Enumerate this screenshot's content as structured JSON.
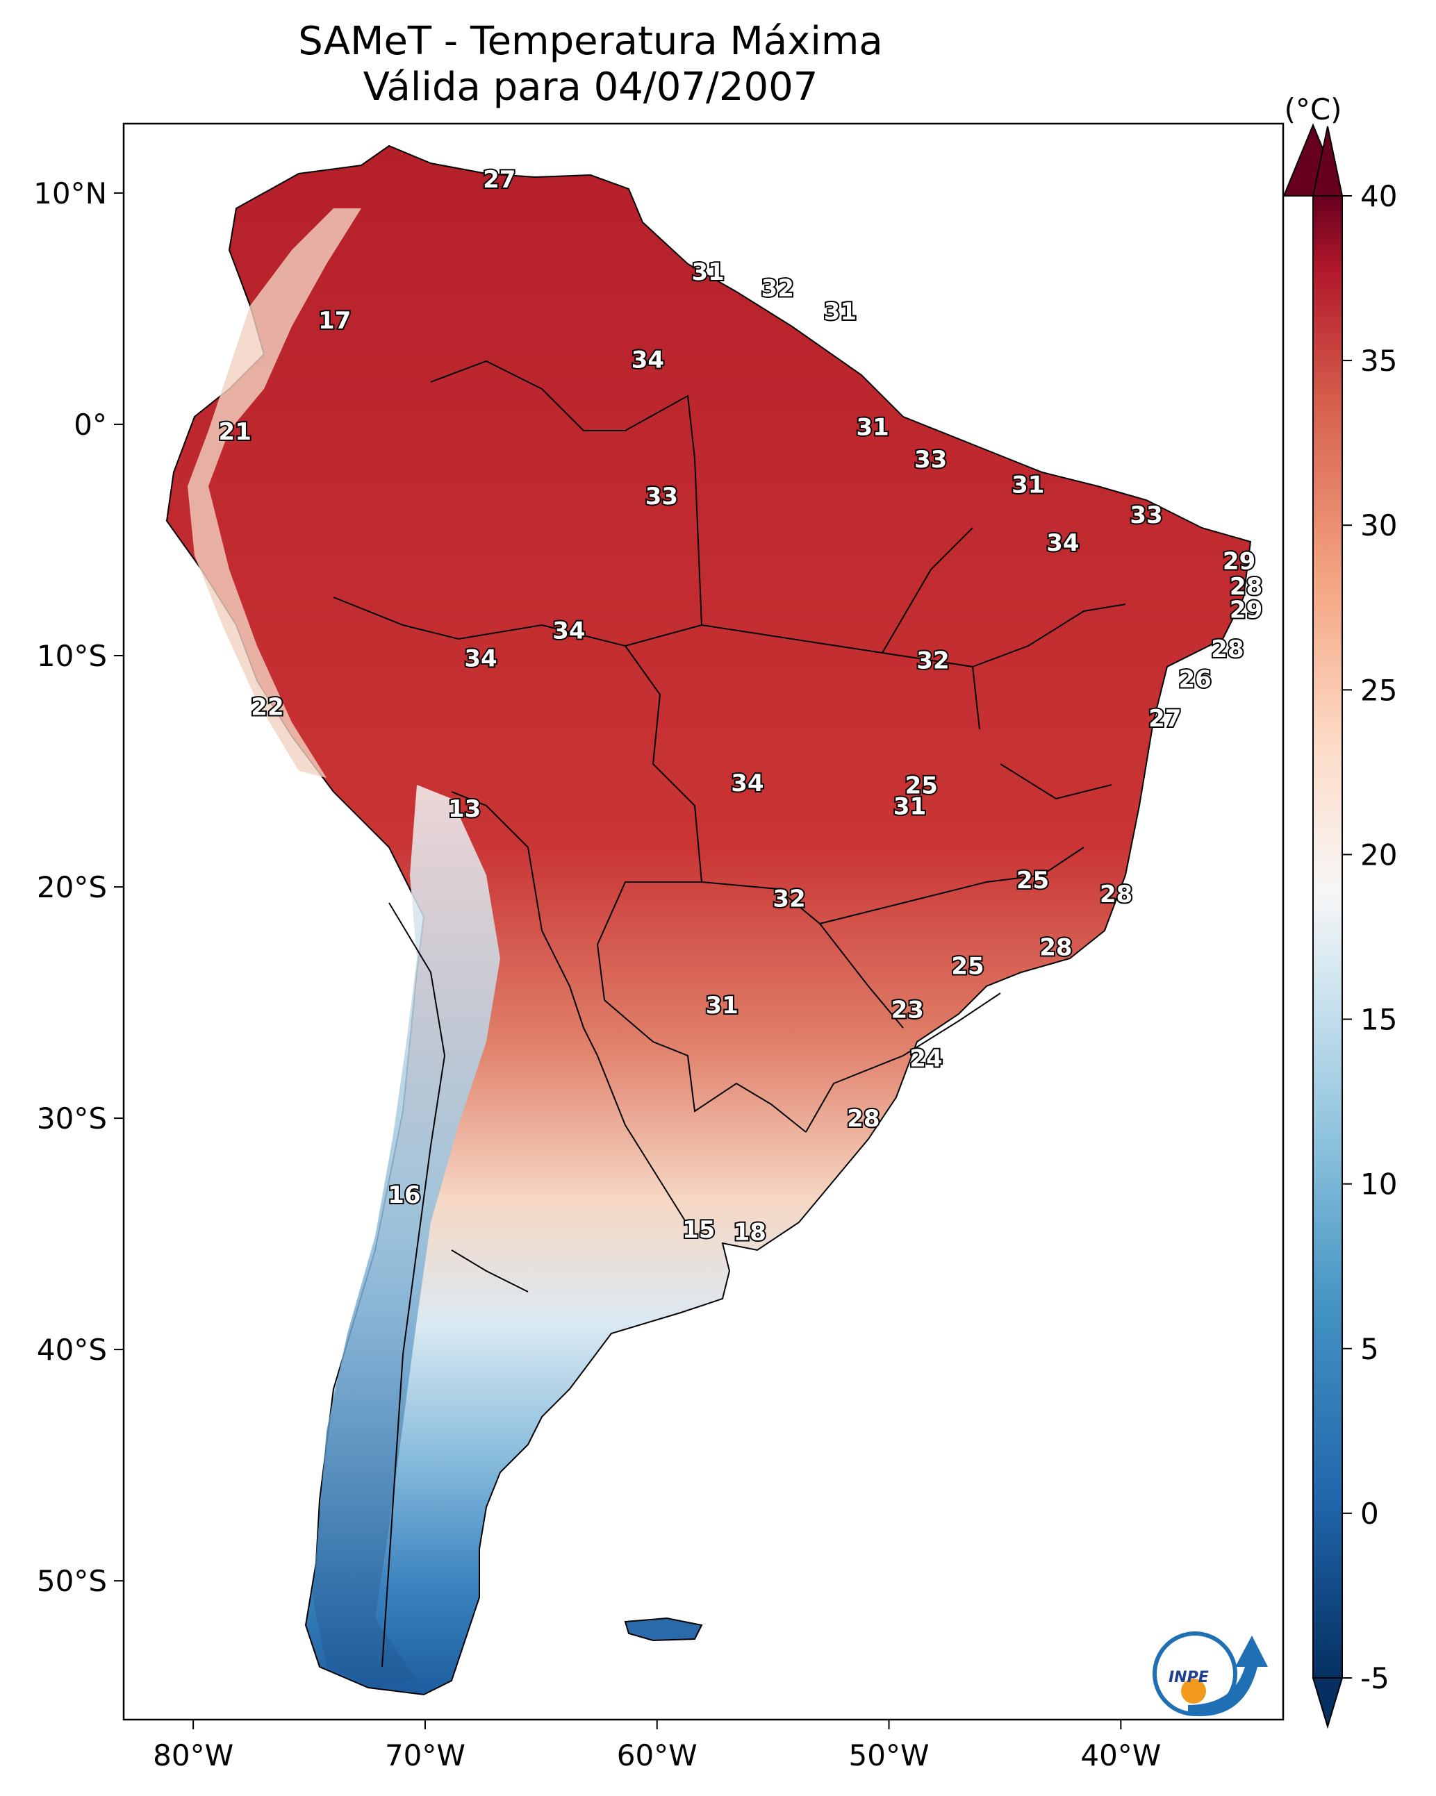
{
  "title": {
    "line1": "SAMeT - Temperatura Máxima",
    "line2": "Válida para 04/07/2007"
  },
  "map": {
    "lon_ticks": [
      {
        "lon": -80,
        "label": "80°W"
      },
      {
        "lon": -70,
        "label": "70°W"
      },
      {
        "lon": -60,
        "label": "60°W"
      },
      {
        "lon": -50,
        "label": "50°W"
      },
      {
        "lon": -40,
        "label": "40°W"
      }
    ],
    "lat_ticks": [
      {
        "lat": 10,
        "label": "10°N"
      },
      {
        "lat": 0,
        "label": "0°"
      },
      {
        "lat": -10,
        "label": "10°S"
      },
      {
        "lat": -20,
        "label": "20°S"
      },
      {
        "lat": -30,
        "label": "30°S"
      },
      {
        "lat": -40,
        "label": "40°S"
      },
      {
        "lat": -50,
        "label": "50°S"
      }
    ],
    "extent": {
      "lon_min": -83,
      "lon_max": -33,
      "lat_min": -56,
      "lat_max": 13
    },
    "labels": [
      {
        "text": "27",
        "lon": -66.8,
        "lat": 10.6
      },
      {
        "text": "31",
        "lon": -57.8,
        "lat": 6.6
      },
      {
        "text": "32",
        "lon": -54.8,
        "lat": 5.9
      },
      {
        "text": "31",
        "lon": -52.1,
        "lat": 4.9
      },
      {
        "text": "17",
        "lon": -73.9,
        "lat": 4.5
      },
      {
        "text": "34",
        "lon": -60.4,
        "lat": 2.8
      },
      {
        "text": "21",
        "lon": -78.2,
        "lat": -0.3
      },
      {
        "text": "31",
        "lon": -50.7,
        "lat": -0.1
      },
      {
        "text": "33",
        "lon": -48.2,
        "lat": -1.5
      },
      {
        "text": "31",
        "lon": -44.0,
        "lat": -2.6
      },
      {
        "text": "33",
        "lon": -59.8,
        "lat": -3.1
      },
      {
        "text": "33",
        "lon": -38.9,
        "lat": -3.9
      },
      {
        "text": "34",
        "lon": -42.5,
        "lat": -5.1
      },
      {
        "text": "29",
        "lon": -34.9,
        "lat": -5.9
      },
      {
        "text": "28",
        "lon": -34.6,
        "lat": -7.0
      },
      {
        "text": "29",
        "lon": -34.6,
        "lat": -8.0
      },
      {
        "text": "34",
        "lon": -63.8,
        "lat": -8.9
      },
      {
        "text": "28",
        "lon": -35.4,
        "lat": -9.7
      },
      {
        "text": "34",
        "lon": -67.6,
        "lat": -10.1
      },
      {
        "text": "32",
        "lon": -48.1,
        "lat": -10.2
      },
      {
        "text": "26",
        "lon": -36.8,
        "lat": -11.0
      },
      {
        "text": "22",
        "lon": -76.8,
        "lat": -12.2
      },
      {
        "text": "27",
        "lon": -38.1,
        "lat": -12.7
      },
      {
        "text": "34",
        "lon": -56.1,
        "lat": -15.5
      },
      {
        "text": "25",
        "lon": -48.6,
        "lat": -15.6
      },
      {
        "text": "13",
        "lon": -68.3,
        "lat": -16.6
      },
      {
        "text": "31",
        "lon": -49.1,
        "lat": -16.5
      },
      {
        "text": "25",
        "lon": -43.8,
        "lat": -19.7
      },
      {
        "text": "28",
        "lon": -40.2,
        "lat": -20.3
      },
      {
        "text": "32",
        "lon": -54.3,
        "lat": -20.5
      },
      {
        "text": "28",
        "lon": -42.8,
        "lat": -22.6
      },
      {
        "text": "25",
        "lon": -46.6,
        "lat": -23.4
      },
      {
        "text": "31",
        "lon": -57.2,
        "lat": -25.1
      },
      {
        "text": "23",
        "lon": -49.2,
        "lat": -25.3
      },
      {
        "text": "24",
        "lon": -48.4,
        "lat": -27.4
      },
      {
        "text": "28",
        "lon": -51.1,
        "lat": -30.0
      },
      {
        "text": "16",
        "lon": -70.9,
        "lat": -33.3
      },
      {
        "text": "15",
        "lon": -58.2,
        "lat": -34.8
      },
      {
        "text": "18",
        "lon": -56.0,
        "lat": -34.9
      }
    ]
  },
  "colorbar": {
    "unit": "(°C)",
    "min": -5,
    "max": 40,
    "ticks": [
      {
        "value": 40,
        "label": "40"
      },
      {
        "value": 35,
        "label": "35"
      },
      {
        "value": 30,
        "label": "30"
      },
      {
        "value": 25,
        "label": "25"
      },
      {
        "value": 20,
        "label": "20"
      },
      {
        "value": 15,
        "label": "15"
      },
      {
        "value": 10,
        "label": "10"
      },
      {
        "value": 5,
        "label": "5"
      },
      {
        "value": 0,
        "label": "0"
      },
      {
        "value": -5,
        "label": "-5"
      }
    ]
  },
  "logo": {
    "text": "INPE"
  },
  "colors": {
    "warm": "#c5282f",
    "cool": "#2166ac",
    "land_outline": "#000000"
  }
}
